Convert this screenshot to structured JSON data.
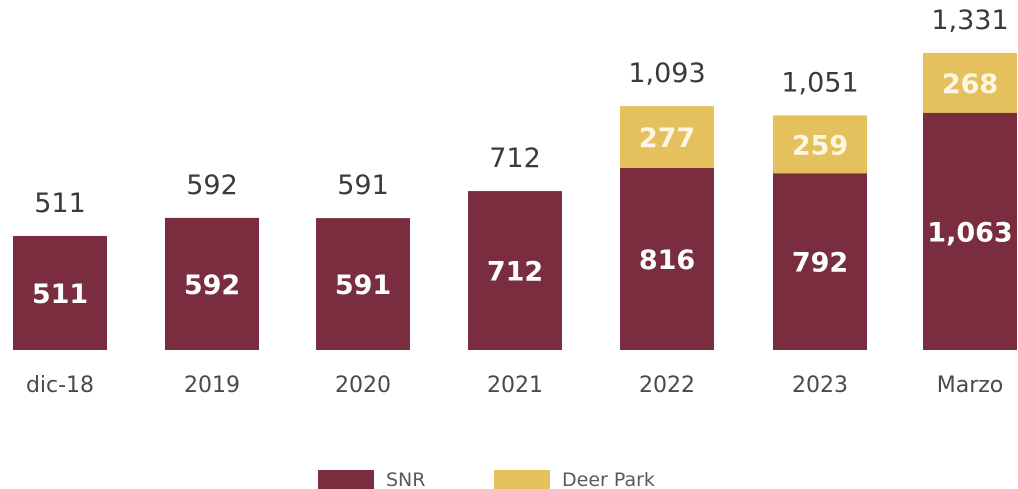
{
  "chart_data": {
    "type": "bar",
    "stacked": true,
    "categories": [
      "dic-18",
      "2019",
      "2020",
      "2021",
      "2022",
      "2023",
      "Marzo"
    ],
    "series": [
      {
        "name": "SNR",
        "color": "#7a2d3f",
        "values": [
          511,
          592,
          591,
          712,
          816,
          792,
          1063
        ]
      },
      {
        "name": "Deer Park",
        "color": "#e4c15c",
        "values": [
          null,
          null,
          null,
          null,
          277,
          259,
          268
        ]
      }
    ],
    "totals": [
      511,
      592,
      591,
      712,
      1093,
      1051,
      1331
    ],
    "segment_labels": [
      [
        "511",
        "592",
        "591",
        "712",
        "816",
        "792",
        "1,063"
      ],
      [
        "",
        "",
        "",
        "",
        "277",
        "259",
        "268"
      ]
    ],
    "total_labels": [
      "511",
      "592",
      "591",
      "712",
      "1,093",
      "1,051",
      "1,331"
    ],
    "legend": {
      "position": "bottom-center",
      "items": [
        "SNR",
        "Deer Park"
      ]
    },
    "grid": false,
    "title": "",
    "xlabel": "",
    "ylabel": ""
  }
}
